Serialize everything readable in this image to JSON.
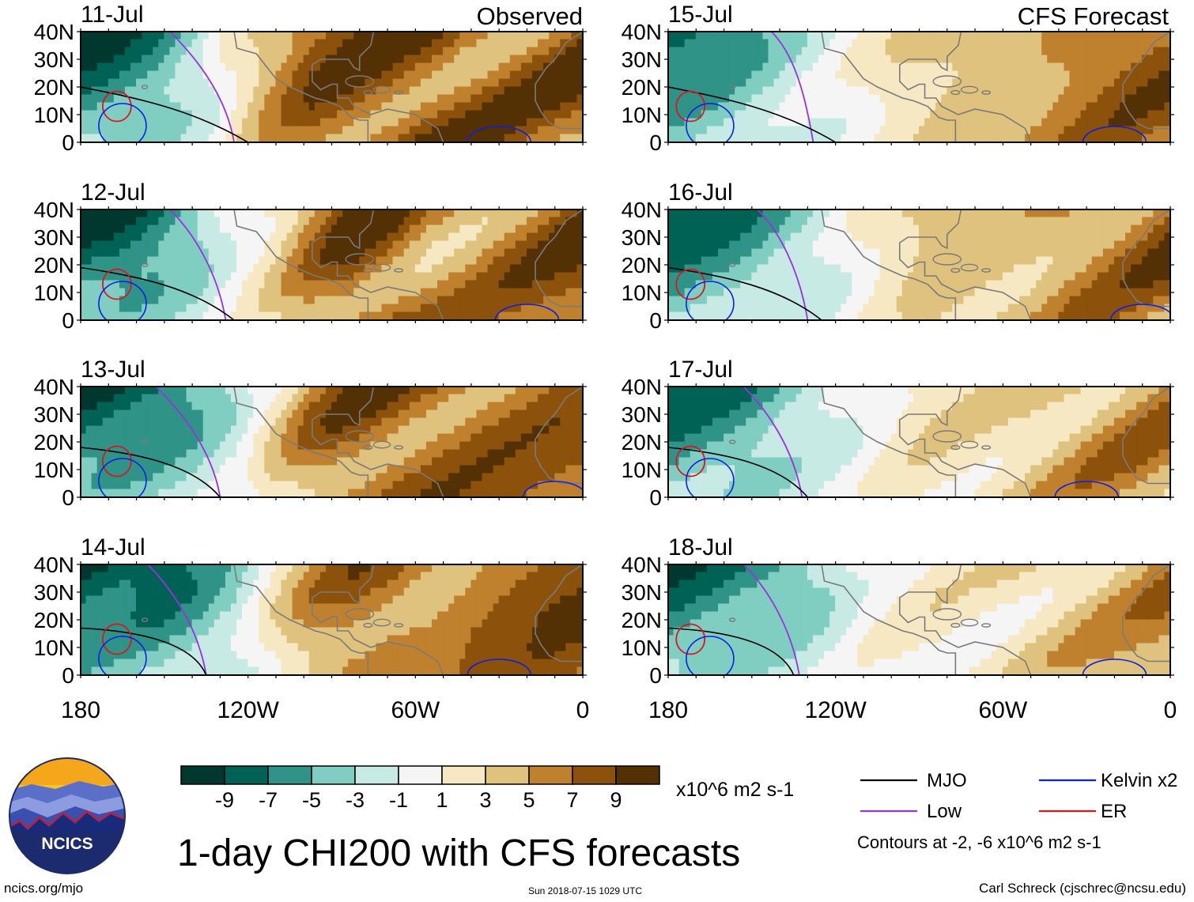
{
  "title": "1-day CHI200 with CFS forecasts",
  "site": "ncics.org/mjo",
  "timestamp": "Sun 2018-07-15 1029 UTC",
  "author": "Carl Schreck (cjschrec@ncsu.edu)",
  "logo_text": "NCICS",
  "column_labels": {
    "observed": "Observed",
    "forecast": "CFS Forecast"
  },
  "colors": {
    "mjo": "#000000",
    "low": "#9b30e0",
    "kelvin": "#0a1ee6",
    "er": "#e0141e",
    "land": "#7a7a7a"
  },
  "chart_data": {
    "type": "heatmap",
    "variable": "CHI200",
    "units": "x10^6 m2 s-1",
    "colorbar": {
      "ticks": [
        -9,
        -7,
        -5,
        -3,
        -1,
        1,
        3,
        5,
        7,
        9
      ],
      "tick_labels": [
        "-9",
        "-7",
        "-5",
        "-3",
        "-1",
        "1",
        "3",
        "5",
        "7",
        "9"
      ],
      "colors": [
        "#00382f",
        "#006255",
        "#2f9387",
        "#80cdc1",
        "#c7eae5",
        "#f5f5f5",
        "#f6e8c3",
        "#dfc27d",
        "#bf812d",
        "#8c510a",
        "#543005"
      ]
    },
    "axes": {
      "lon_range": [
        -180,
        0
      ],
      "lat_range": [
        0,
        40
      ],
      "x_ticks": [
        -180,
        -120,
        -60,
        0
      ],
      "x_tick_labels": [
        "180",
        "120W",
        "60W",
        "0"
      ],
      "y_ticks": [
        0,
        10,
        20,
        30,
        40
      ],
      "y_tick_labels": [
        "0",
        "10N",
        "20N",
        "30N",
        "40N"
      ]
    },
    "legend": {
      "entries": [
        {
          "label": "MJO",
          "color": "#000000"
        },
        {
          "label": "Kelvin x2",
          "color": "#0a1ee6"
        },
        {
          "label": "Low",
          "color": "#9b30e0"
        },
        {
          "label": "ER",
          "color": "#e0141e"
        }
      ],
      "note": "Contours at -2, -6 x10^6 m2 s-1"
    },
    "panels": [
      {
        "date": "11-Jul",
        "source": "Observed",
        "low_lon": [
          -140,
          -125
        ],
        "val_profile": [
          -9,
          -8,
          -6,
          -3,
          2,
          6,
          9,
          10,
          10,
          10,
          9,
          9,
          9,
          10
        ]
      },
      {
        "date": "12-Jul",
        "source": "Observed",
        "low_lon": [
          -140,
          -128
        ],
        "val_profile": [
          -9,
          -9,
          -7,
          -4,
          0,
          3,
          7,
          10,
          9,
          7,
          7,
          8,
          9,
          10
        ]
      },
      {
        "date": "13-Jul",
        "source": "Observed",
        "low_lon": [
          -145,
          -130
        ],
        "val_profile": [
          -9,
          -8,
          -7,
          -5,
          -2,
          3,
          7,
          9,
          9,
          9,
          9,
          9,
          9,
          9
        ]
      },
      {
        "date": "14-Jul",
        "source": "Observed",
        "low_lon": [
          -148,
          -135
        ],
        "val_profile": [
          -9,
          -8,
          -8,
          -6,
          -3,
          2,
          6,
          8,
          8,
          7,
          8,
          9,
          10,
          10
        ]
      },
      {
        "date": "15-Jul",
        "source": "CFS Forecast",
        "low_lon": [
          -135,
          -128
        ],
        "val_profile": [
          -8,
          -7,
          -5,
          -3,
          -1,
          1,
          3,
          4,
          5,
          6,
          7,
          8,
          9,
          9
        ]
      },
      {
        "date": "16-Jul",
        "source": "CFS Forecast",
        "low_lon": [
          -140,
          -130
        ],
        "val_profile": [
          -8,
          -7,
          -6,
          -4,
          -2,
          1,
          3,
          5,
          5,
          5,
          6,
          7,
          8,
          9
        ]
      },
      {
        "date": "17-Jul",
        "source": "CFS Forecast",
        "low_lon": [
          -145,
          -132
        ],
        "val_profile": [
          -8,
          -7,
          -6,
          -4,
          -2,
          0,
          2,
          3,
          3,
          4,
          5,
          6,
          7,
          7
        ]
      },
      {
        "date": "18-Jul",
        "source": "CFS Forecast",
        "low_lon": [
          -145,
          -133
        ],
        "val_profile": [
          -8,
          -7,
          -6,
          -5,
          -3,
          0,
          1,
          2,
          2,
          3,
          4,
          5,
          6,
          7
        ]
      }
    ]
  }
}
